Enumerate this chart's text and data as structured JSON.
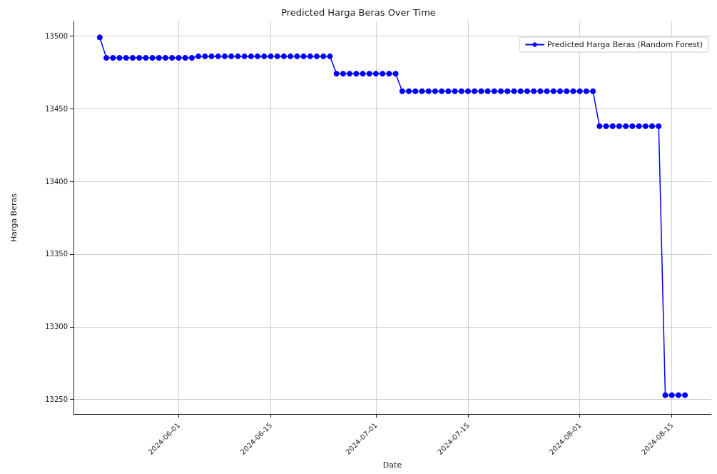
{
  "chart_data": {
    "type": "line",
    "title": "Predicted Harga Beras Over Time",
    "xlabel": "Date",
    "ylabel": "Harga Beras",
    "x": [
      "2024-05-20",
      "2024-05-21",
      "2024-05-22",
      "2024-05-23",
      "2024-05-24",
      "2024-05-25",
      "2024-05-26",
      "2024-05-27",
      "2024-05-28",
      "2024-05-29",
      "2024-05-30",
      "2024-05-31",
      "2024-06-01",
      "2024-06-02",
      "2024-06-03",
      "2024-06-04",
      "2024-06-05",
      "2024-06-06",
      "2024-06-07",
      "2024-06-08",
      "2024-06-09",
      "2024-06-10",
      "2024-06-11",
      "2024-06-12",
      "2024-06-13",
      "2024-06-14",
      "2024-06-15",
      "2024-06-16",
      "2024-06-17",
      "2024-06-18",
      "2024-06-19",
      "2024-06-20",
      "2024-06-21",
      "2024-06-22",
      "2024-06-23",
      "2024-06-24",
      "2024-06-25",
      "2024-06-26",
      "2024-06-27",
      "2024-06-28",
      "2024-06-29",
      "2024-06-30",
      "2024-07-01",
      "2024-07-02",
      "2024-07-03",
      "2024-07-04",
      "2024-07-05",
      "2024-07-06",
      "2024-07-07",
      "2024-07-08",
      "2024-07-09",
      "2024-07-10",
      "2024-07-11",
      "2024-07-12",
      "2024-07-13",
      "2024-07-14",
      "2024-07-15",
      "2024-07-16",
      "2024-07-17",
      "2024-07-18",
      "2024-07-19",
      "2024-07-20",
      "2024-07-21",
      "2024-07-22",
      "2024-07-23",
      "2024-07-24",
      "2024-07-25",
      "2024-07-26",
      "2024-07-27",
      "2024-07-28",
      "2024-07-29",
      "2024-07-30",
      "2024-07-31",
      "2024-08-01",
      "2024-08-02",
      "2024-08-03",
      "2024-08-04",
      "2024-08-05",
      "2024-08-06",
      "2024-08-07",
      "2024-08-08",
      "2024-08-09",
      "2024-08-10",
      "2024-08-11",
      "2024-08-12",
      "2024-08-13",
      "2024-08-14",
      "2024-08-15",
      "2024-08-16",
      "2024-08-17"
    ],
    "series": [
      {
        "name": "Predicted Harga Beras (Random Forest)",
        "color": "#0000ff",
        "values": [
          13499,
          13485,
          13485,
          13485,
          13485,
          13485,
          13485,
          13485,
          13485,
          13485,
          13485,
          13485,
          13485,
          13485,
          13485,
          13486,
          13486,
          13486,
          13486,
          13486,
          13486,
          13486,
          13486,
          13486,
          13486,
          13486,
          13486,
          13486,
          13486,
          13486,
          13486,
          13486,
          13486,
          13486,
          13486,
          13486,
          13474,
          13474,
          13474,
          13474,
          13474,
          13474,
          13474,
          13474,
          13474,
          13474,
          13462,
          13462,
          13462,
          13462,
          13462,
          13462,
          13462,
          13462,
          13462,
          13462,
          13462,
          13462,
          13462,
          13462,
          13462,
          13462,
          13462,
          13462,
          13462,
          13462,
          13462,
          13462,
          13462,
          13462,
          13462,
          13462,
          13462,
          13462,
          13462,
          13462,
          13438,
          13438,
          13438,
          13438,
          13438,
          13438,
          13438,
          13438,
          13438,
          13438,
          13253,
          13253,
          13253,
          13253
        ]
      }
    ],
    "xlim": [
      "2024-05-16",
      "2024-08-21"
    ],
    "xticks": [
      {
        "value": "2024-06-01",
        "label": "2024-06-01"
      },
      {
        "value": "2024-06-15",
        "label": "2024-06-15"
      },
      {
        "value": "2024-07-01",
        "label": "2024-07-01"
      },
      {
        "value": "2024-07-15",
        "label": "2024-07-15"
      },
      {
        "value": "2024-08-01",
        "label": "2024-08-01"
      },
      {
        "value": "2024-08-15",
        "label": "2024-08-15"
      }
    ],
    "ylim": [
      13240,
      13510
    ],
    "yticks": [
      13250,
      13300,
      13350,
      13400,
      13450,
      13500
    ],
    "grid": true,
    "legend": "top right",
    "marker": "circle",
    "line_style": "solid"
  }
}
